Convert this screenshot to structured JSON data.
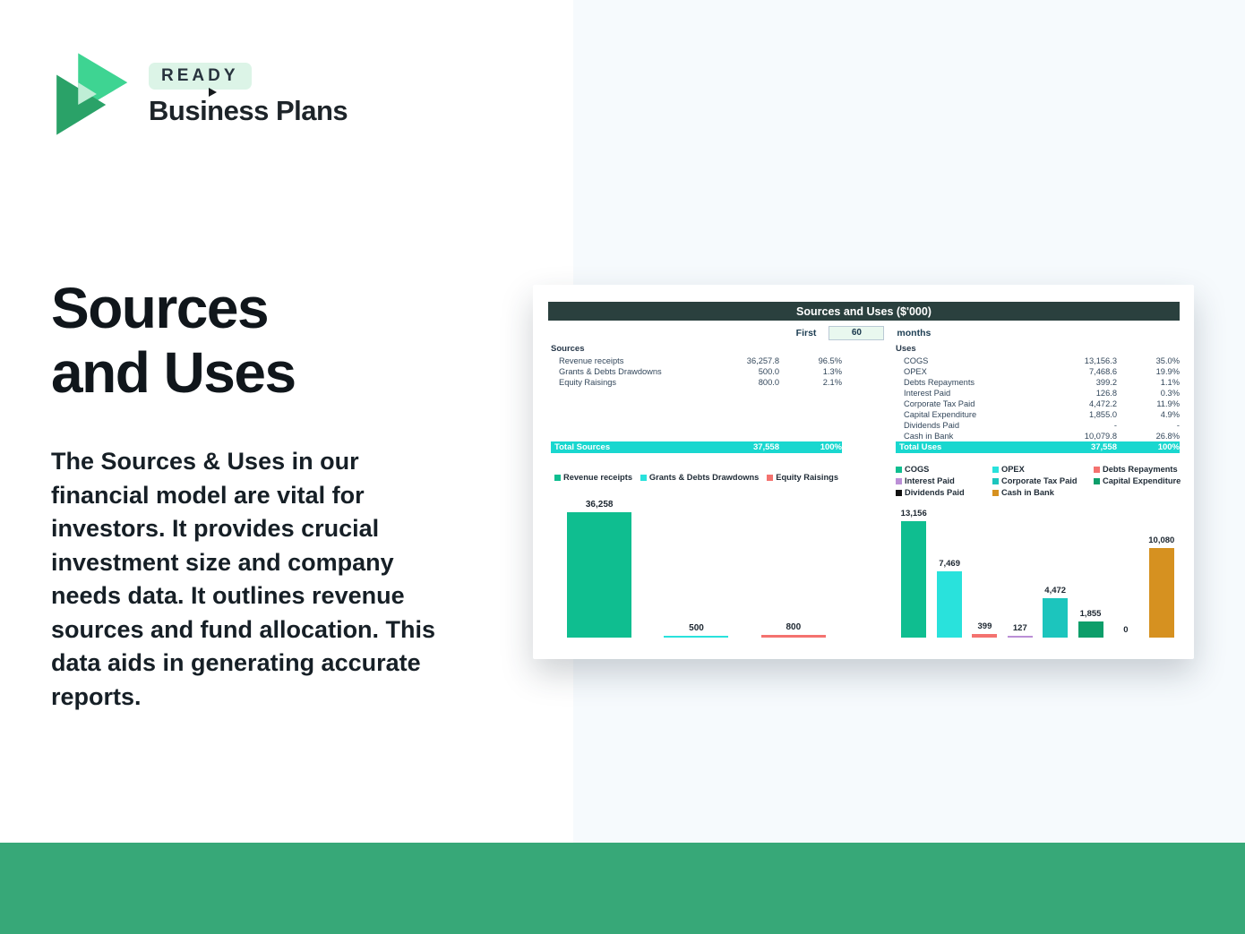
{
  "page": {
    "bg_left": "#ffffff",
    "bg_right": "#f6fafd",
    "footer_color": "#37a878"
  },
  "brand": {
    "badge": "READY",
    "name": "Business Plans",
    "logo_colors": {
      "bright_green": "#3ed492",
      "dark_green": "#2aa268",
      "pale_mint": "#bfeed6"
    }
  },
  "hero": {
    "title_line1": "Sources",
    "title_line2": "and Uses",
    "description": "The Sources & Uses in our financial model are vital for investors. It provides crucial investment size and company needs data. It outlines revenue sources and fund allocation. This data aids in generating accurate reports."
  },
  "report": {
    "title": "Sources and Uses ($'000)",
    "period": {
      "prefix": "First",
      "value": "60",
      "suffix": "months"
    },
    "sources": {
      "heading": "Sources",
      "rows": [
        {
          "label": "Revenue receipts",
          "value": "36,257.8",
          "pct": "96.5%"
        },
        {
          "label": "Grants & Debts Drawdowns",
          "value": "500.0",
          "pct": "1.3%"
        },
        {
          "label": "Equity Raisings",
          "value": "800.0",
          "pct": "2.1%"
        }
      ],
      "total": {
        "label": "Total Sources",
        "value": "37,558",
        "pct": "100%"
      }
    },
    "uses": {
      "heading": "Uses",
      "rows": [
        {
          "label": "COGS",
          "value": "13,156.3",
          "pct": "35.0%"
        },
        {
          "label": "OPEX",
          "value": "7,468.6",
          "pct": "19.9%"
        },
        {
          "label": "Debts Repayments",
          "value": "399.2",
          "pct": "1.1%"
        },
        {
          "label": "Interest Paid",
          "value": "126.8",
          "pct": "0.3%"
        },
        {
          "label": "Corporate Tax Paid",
          "value": "4,472.2",
          "pct": "11.9%"
        },
        {
          "label": "Capital Expenditure",
          "value": "1,855.0",
          "pct": "4.9%"
        },
        {
          "label": "Dividends Paid",
          "value": "-",
          "pct": "-"
        },
        {
          "label": "Cash in Bank",
          "value": "10,079.8",
          "pct": "26.8%"
        }
      ],
      "total": {
        "label": "Total Uses",
        "value": "37,558",
        "pct": "100%"
      }
    }
  },
  "chart_data": [
    {
      "type": "bar",
      "title": "Sources",
      "categories": [
        "Revenue receipts",
        "Grants & Debts Drawdowns",
        "Equity Raisings"
      ],
      "values": [
        36258,
        500,
        800
      ],
      "labels": [
        "36,258",
        "500",
        "800"
      ],
      "colors": [
        "#0fbe90",
        "#29e2dc",
        "#f4726f"
      ],
      "ylim": [
        0,
        36258
      ],
      "legend_position": "top",
      "grid": false
    },
    {
      "type": "bar",
      "title": "Uses",
      "categories": [
        "COGS",
        "OPEX",
        "Debts Repayments",
        "Interest Paid",
        "Corporate Tax Paid",
        "Capital Expenditure",
        "Dividends Paid",
        "Cash in Bank"
      ],
      "values": [
        13156,
        7469,
        399,
        127,
        4472,
        1855,
        0,
        10080
      ],
      "labels": [
        "13,156",
        "7,469",
        "399",
        "127",
        "4,472",
        "1,855",
        "0",
        "10,080"
      ],
      "colors": [
        "#0fbe90",
        "#29e2dc",
        "#f4726f",
        "#bb8fd6",
        "#1cc5bd",
        "#0d9e6a",
        "#111111",
        "#d69120"
      ],
      "ylim": [
        0,
        13156
      ],
      "legend_position": "top",
      "grid": false
    }
  ]
}
